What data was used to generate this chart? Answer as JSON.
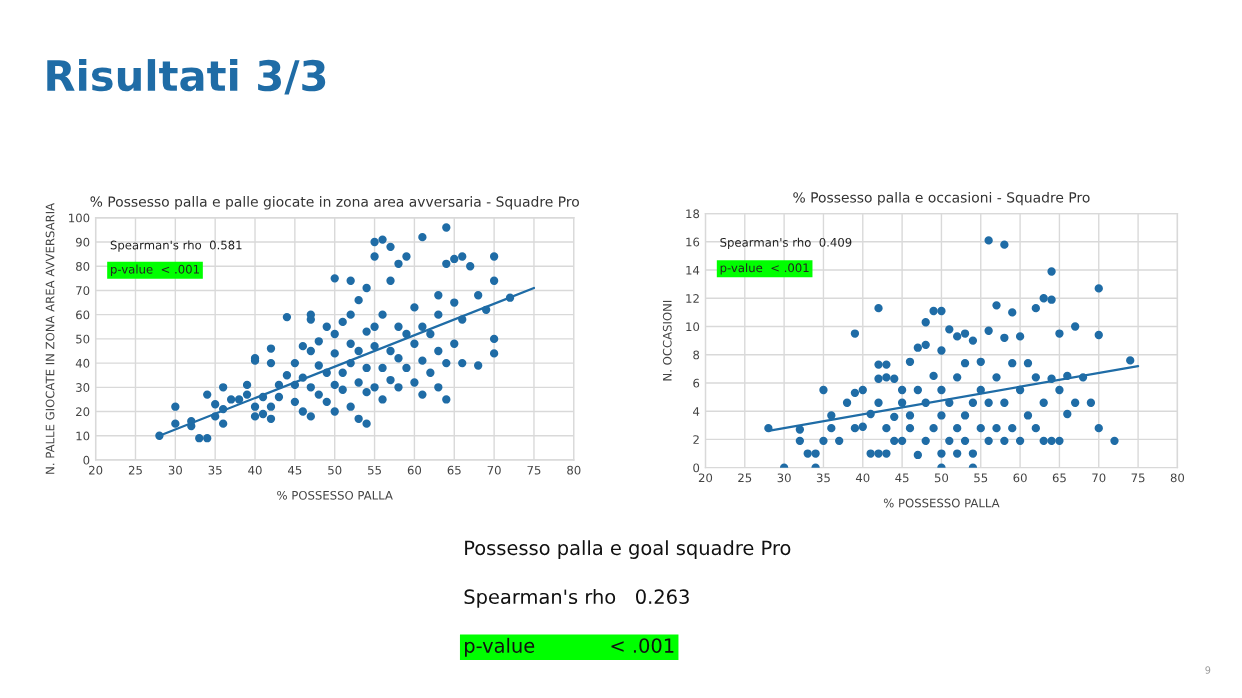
{
  "chart_data": [
    {
      "type": "other",
      "title": "Risultati 3/3"
    },
    {
      "type": "scatter",
      "title": "% Possesso palla e palle giocate in zona area avversaria - Squadre Pro",
      "xlabel": "% POSSESSO PALLA",
      "ylabel": "N. PALLE GIOCATE IN ZONA AREA AVVERSARIA",
      "xlim": [
        20,
        80
      ],
      "ylim": [
        0,
        100
      ],
      "xticks": [
        20,
        25,
        30,
        35,
        40,
        45,
        50,
        55,
        60,
        65,
        70,
        75,
        80
      ],
      "yticks": [
        0,
        10,
        20,
        30,
        40,
        50,
        60,
        70,
        80,
        90,
        100
      ],
      "grid": true,
      "legend": false,
      "annotations": [
        "Spearman's rho  0.581",
        "p-value  < .001"
      ],
      "series": [
        {
          "type": "scatter",
          "marker": "circle",
          "color": "#1f6ca6",
          "x": [
            28,
            30,
            30,
            32,
            32,
            33,
            34,
            34,
            35,
            35,
            36,
            36,
            36,
            37,
            38,
            39,
            39,
            40,
            40,
            40,
            40,
            41,
            41,
            42,
            42,
            42,
            42,
            43,
            43,
            44,
            44,
            45,
            45,
            45,
            46,
            46,
            46,
            47,
            47,
            47,
            47,
            47,
            48,
            48,
            48,
            49,
            49,
            49,
            50,
            50,
            50,
            50,
            50,
            51,
            51,
            51,
            52,
            52,
            52,
            52,
            52,
            53,
            53,
            53,
            53,
            54,
            54,
            54,
            54,
            54,
            55,
            55,
            55,
            55,
            55,
            56,
            56,
            56,
            56,
            57,
            57,
            57,
            57,
            58,
            58,
            58,
            58,
            59,
            59,
            59,
            60,
            60,
            60,
            61,
            61,
            61,
            61,
            62,
            62,
            63,
            63,
            63,
            63,
            64,
            64,
            64,
            64,
            65,
            65,
            65,
            66,
            66,
            66,
            67,
            68,
            68,
            69,
            70,
            70,
            70,
            70,
            72
          ],
          "values": [
            10,
            15,
            22,
            14,
            16,
            9,
            9,
            27,
            18,
            23,
            15,
            21,
            30,
            25,
            25,
            27,
            31,
            18,
            22,
            41,
            42,
            19,
            26,
            17,
            22,
            40,
            46,
            26,
            31,
            35,
            59,
            24,
            31,
            40,
            20,
            34,
            47,
            18,
            30,
            45,
            58,
            60,
            27,
            39,
            49,
            24,
            36,
            55,
            20,
            31,
            44,
            52,
            75,
            29,
            36,
            57,
            22,
            40,
            48,
            60,
            74,
            17,
            32,
            45,
            66,
            15,
            28,
            38,
            53,
            71,
            30,
            47,
            55,
            84,
            90,
            25,
            38,
            60,
            91,
            33,
            45,
            74,
            88,
            30,
            42,
            55,
            81,
            38,
            52,
            84,
            32,
            48,
            63,
            27,
            41,
            55,
            92,
            36,
            52,
            30,
            45,
            60,
            68,
            25,
            40,
            96,
            81,
            48,
            65,
            83,
            40,
            58,
            84,
            80,
            39,
            68,
            62,
            44,
            50,
            74,
            84,
            67
          ]
        },
        {
          "type": "line",
          "color": "#1f6ca6",
          "x": [
            28,
            75
          ],
          "values": [
            10,
            71
          ]
        }
      ]
    },
    {
      "type": "scatter",
      "title": "% Possesso palla e occasioni - Squadre Pro",
      "xlabel": "% POSSESSO PALLA",
      "ylabel": "N. OCCASIONI",
      "xlim": [
        20,
        80
      ],
      "ylim": [
        0,
        18
      ],
      "xticks": [
        20,
        25,
        30,
        35,
        40,
        45,
        50,
        55,
        60,
        65,
        70,
        75,
        80
      ],
      "yticks": [
        0,
        2,
        4,
        6,
        8,
        10,
        12,
        14,
        16,
        18
      ],
      "grid": true,
      "legend": false,
      "annotations": [
        "Spearman's rho  0.409",
        "p-value  < .001"
      ],
      "series": [
        {
          "type": "scatter",
          "marker": "circle",
          "color": "#1f6ca6",
          "x": [
            28,
            30,
            32,
            32,
            33,
            34,
            34,
            35,
            35,
            36,
            36,
            37,
            38,
            39,
            39,
            39,
            40,
            40,
            41,
            41,
            42,
            42,
            42,
            42,
            42,
            43,
            43,
            43,
            43,
            44,
            44,
            44,
            45,
            45,
            45,
            46,
            46,
            46,
            47,
            47,
            47,
            48,
            48,
            48,
            48,
            49,
            49,
            49,
            50,
            50,
            50,
            50,
            50,
            50,
            51,
            51,
            51,
            52,
            52,
            52,
            52,
            53,
            53,
            53,
            53,
            54,
            54,
            54,
            54,
            55,
            55,
            55,
            56,
            56,
            56,
            56,
            57,
            57,
            57,
            58,
            58,
            58,
            58,
            59,
            59,
            59,
            60,
            60,
            60,
            61,
            61,
            62,
            62,
            62,
            63,
            63,
            63,
            64,
            64,
            64,
            64,
            65,
            65,
            65,
            66,
            66,
            67,
            67,
            68,
            69,
            70,
            70,
            70,
            72,
            74
          ],
          "values": [
            2.8,
            0,
            1.9,
            2.7,
            1,
            1,
            0,
            1.9,
            5.5,
            3.7,
            2.8,
            1.9,
            4.6,
            2.8,
            5.3,
            9.5,
            2.9,
            5.5,
            3.8,
            1,
            1,
            4.6,
            6.3,
            7.3,
            11.3,
            1,
            2.8,
            6.4,
            7.3,
            1.9,
            3.6,
            6.3,
            1.9,
            4.6,
            5.5,
            2.8,
            3.7,
            7.5,
            0.9,
            5.5,
            8.5,
            1.9,
            4.6,
            8.7,
            10.3,
            2.8,
            6.5,
            11.1,
            0,
            1,
            3.7,
            5.5,
            8.3,
            11.1,
            1.9,
            4.6,
            9.8,
            1,
            2.8,
            6.4,
            9.3,
            1.9,
            3.7,
            7.4,
            9.5,
            0,
            1,
            4.6,
            9,
            2.8,
            5.5,
            7.5,
            1.9,
            4.6,
            9.7,
            16.1,
            2.8,
            6.4,
            11.5,
            1.9,
            4.6,
            9.2,
            15.8,
            2.8,
            7.4,
            11,
            1.9,
            5.5,
            9.3,
            3.7,
            7.4,
            2.8,
            6.4,
            11.3,
            1.9,
            4.6,
            12,
            1.9,
            6.3,
            13.9,
            11.9,
            1.9,
            5.5,
            9.5,
            3.8,
            6.5,
            4.6,
            10,
            6.4,
            4.6,
            2.8,
            9.4,
            12.7,
            1.9,
            7.6
          ]
        },
        {
          "type": "line",
          "color": "#1f6ca6",
          "x": [
            28,
            75
          ],
          "values": [
            2.6,
            7.2
          ]
        }
      ]
    },
    {
      "type": "other",
      "title": "Possesso palla e goal squadre Pro",
      "annotations": [
        "Spearman's rho   0.263",
        "p-value            < .001",
        "9"
      ]
    }
  ]
}
